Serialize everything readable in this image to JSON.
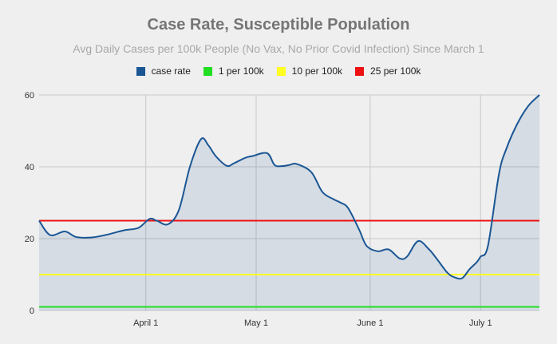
{
  "chart_data": {
    "type": "line",
    "title": "Case Rate, Susceptible Population",
    "subtitle": "Avg Daily Cases per 100k People (No Vax, No Prior Covid Infection) Since March 1",
    "xlabel": "",
    "ylabel": "",
    "ylim": [
      0,
      60
    ],
    "xlim": [
      0,
      136
    ],
    "y_ticks": [
      "0",
      "20",
      "40",
      "60"
    ],
    "x_ticks": [
      {
        "day": 29,
        "label": "April 1"
      },
      {
        "day": 59,
        "label": "May 1"
      },
      {
        "day": 90,
        "label": "June 1"
      },
      {
        "day": 120,
        "label": "July 1"
      }
    ],
    "series": [
      {
        "name": "case rate",
        "color": "#1a5694",
        "type": "area",
        "x": [
          0,
          3,
          7,
          10,
          14,
          18,
          23,
          27,
          30,
          32,
          35,
          38,
          41,
          44,
          46,
          48,
          51,
          53,
          56,
          58,
          62,
          64,
          66,
          68,
          70,
          74,
          77,
          80,
          82,
          84,
          87,
          89,
          92,
          95,
          98,
          100,
          103,
          106,
          108,
          111,
          113,
          115,
          117,
          119,
          120,
          122,
          125,
          127,
          130,
          133,
          136
        ],
        "values": [
          25,
          21,
          22,
          20.5,
          20.3,
          21,
          22.3,
          23,
          25.5,
          25,
          24,
          28,
          40,
          47.7,
          46,
          43,
          40.3,
          41,
          42.5,
          43,
          43.8,
          40.5,
          40.2,
          40.5,
          40.8,
          38.5,
          33,
          31,
          30,
          28.5,
          22.5,
          18,
          16.5,
          17,
          14.5,
          15,
          19.3,
          17,
          14.5,
          10.5,
          9.2,
          9,
          11.5,
          13.5,
          15,
          18,
          38,
          45,
          52,
          57,
          60
        ]
      },
      {
        "name": "1 per 100k",
        "color": "#22dd22",
        "type": "hline",
        "value": 1
      },
      {
        "name": "10 per 100k",
        "color": "#ffff22",
        "type": "hline",
        "value": 10
      },
      {
        "name": "25 per 100k",
        "color": "#ee1111",
        "type": "hline",
        "value": 25
      }
    ]
  }
}
